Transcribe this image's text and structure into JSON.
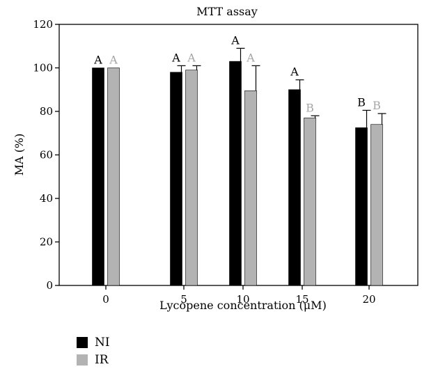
{
  "chart_data": {
    "type": "bar",
    "title": "MTT assay",
    "xlabel": "Lycopene concentration (μM)",
    "ylabel": "MA (%)",
    "ylim": [
      0,
      120
    ],
    "yticks": [
      0,
      20,
      40,
      60,
      80,
      100,
      120
    ],
    "categories": [
      "0",
      "5",
      "10",
      "15",
      "20"
    ],
    "series": [
      {
        "name": "NI",
        "color": "#000000",
        "values": [
          100,
          98,
          103,
          90,
          72.5
        ],
        "errors": [
          0,
          3,
          6,
          4.5,
          8
        ],
        "letters": [
          "A",
          "A",
          "A",
          "A",
          "B"
        ],
        "letter_color": "#000000"
      },
      {
        "name": "IR",
        "color": "#b3b3b3",
        "values": [
          100,
          99,
          89.5,
          77,
          74
        ],
        "errors": [
          0,
          2,
          11.5,
          1,
          5
        ],
        "letters": [
          "A",
          "A",
          "A",
          "B",
          "B"
        ],
        "letter_color": "#a6a6a6"
      }
    ],
    "grid": false,
    "legend_position": "bottom-left"
  }
}
